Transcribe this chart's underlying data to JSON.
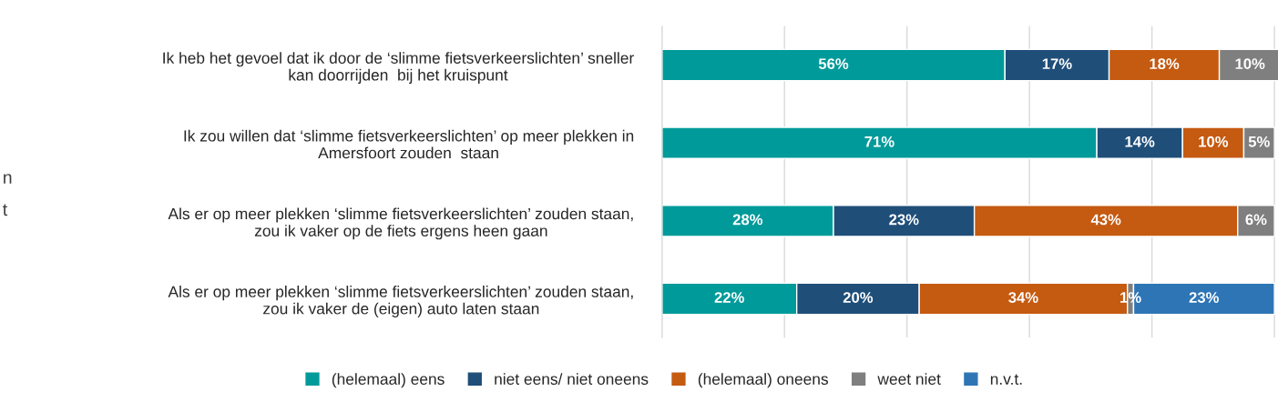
{
  "chart_data": {
    "type": "bar",
    "orientation": "horizontal",
    "stacked": true,
    "categories": [
      "Ik heb het gevoel dat ik door de ‘slimme fietsverkeerslichten’ sneller\nkan doorrijden  bij het kruispunt",
      "Ik zou willen dat ‘slimme fietsverkeerslichten’ op meer plekken in\nAmersfoort zouden  staan",
      "Als er op meer plekken ‘slimme fietsverkeerslichten’ zouden staan,\nzou ik vaker op de fiets ergens heen gaan",
      "Als er op meer plekken ‘slimme fietsverkeerslichten’ zouden staan,\nzou ik vaker de (eigen) auto laten staan"
    ],
    "series": [
      {
        "name": "(helemaal) eens",
        "color": "#009a9a",
        "values": [
          56,
          71,
          28,
          22
        ],
        "value_labels": [
          "56%",
          "71%",
          "28%",
          "22%"
        ]
      },
      {
        "name": "niet eens/ niet oneens",
        "color": "#1f4e79",
        "values": [
          17,
          14,
          23,
          20
        ],
        "value_labels": [
          "17%",
          "14%",
          "23%",
          "20%"
        ]
      },
      {
        "name": "(helemaal) oneens",
        "color": "#c55a11",
        "values": [
          18,
          10,
          43,
          34
        ],
        "value_labels": [
          "18%",
          "10%",
          "43%",
          "34%"
        ]
      },
      {
        "name": "weet niet",
        "color": "#7f7f7f",
        "values": [
          10,
          5,
          6,
          1
        ],
        "value_labels": [
          "10%",
          "5%",
          "6%",
          "1%"
        ]
      },
      {
        "name": "n.v.t.",
        "color": "#2e75b6",
        "values": [
          null,
          null,
          null,
          23
        ],
        "value_labels": [
          null,
          null,
          null,
          "23%"
        ]
      }
    ],
    "tick_labels": "y",
    "grid": "x",
    "legend": "bottom",
    "annotations": [
      "n",
      "t"
    ]
  }
}
